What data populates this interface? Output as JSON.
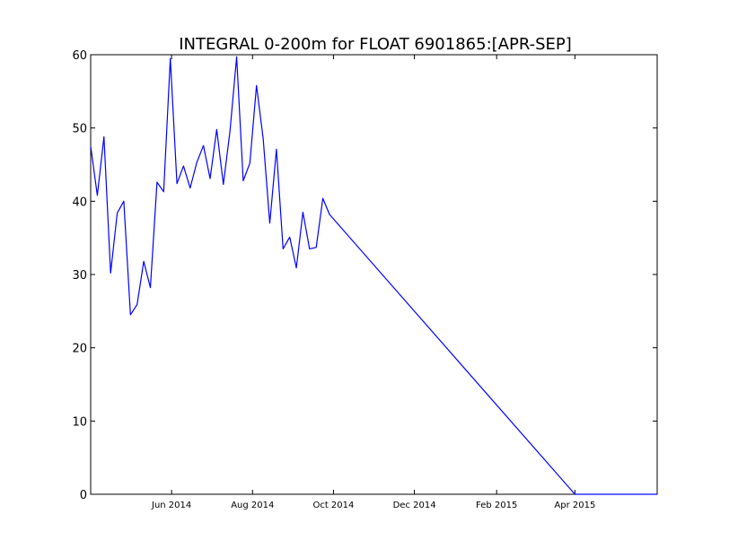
{
  "chart_data": {
    "type": "line",
    "title": "INTEGRAL 0-200m for FLOAT 6901865:[APR-SEP]",
    "xlabel": "",
    "ylabel": "",
    "x_axis_type": "date",
    "xlim": [
      "2014-04-01",
      "2015-06-02"
    ],
    "ylim": [
      0,
      60
    ],
    "yticks": [
      0,
      10,
      20,
      30,
      40,
      50,
      60
    ],
    "xticks": [
      {
        "date": "2014-06-01",
        "label": "Jun 2014"
      },
      {
        "date": "2014-08-01",
        "label": "Aug 2014"
      },
      {
        "date": "2014-10-01",
        "label": "Oct 2014"
      },
      {
        "date": "2014-12-01",
        "label": "Dec 2014"
      },
      {
        "date": "2015-02-01",
        "label": "Feb 2015"
      },
      {
        "date": "2015-04-01",
        "label": "Apr 2015"
      }
    ],
    "grid": false,
    "line_color": "#0000ff",
    "series": [
      {
        "x": [
          "2014-04-01",
          "2014-04-06",
          "2014-04-11",
          "2014-04-16",
          "2014-04-21",
          "2014-04-26",
          "2014-05-01",
          "2014-05-06",
          "2014-05-11",
          "2014-05-16",
          "2014-05-21",
          "2014-05-26",
          "2014-05-31",
          "2014-06-05",
          "2014-06-10",
          "2014-06-15",
          "2014-06-20",
          "2014-06-25",
          "2014-06-30",
          "2014-07-05",
          "2014-07-10",
          "2014-07-15",
          "2014-07-20",
          "2014-07-25",
          "2014-07-30",
          "2014-08-04",
          "2014-08-09",
          "2014-08-14",
          "2014-08-19",
          "2014-08-24",
          "2014-08-29",
          "2014-09-03",
          "2014-09-08",
          "2014-09-13",
          "2014-09-18",
          "2014-09-23",
          "2014-09-28",
          "2015-04-01",
          "2015-04-06",
          "2015-04-11",
          "2015-04-16",
          "2015-04-21",
          "2015-04-26",
          "2015-05-01",
          "2015-05-06",
          "2015-05-11",
          "2015-05-16",
          "2015-05-21",
          "2015-05-26",
          "2015-05-31",
          "2015-06-02"
        ],
        "values": [
          47.5,
          40.8,
          48.8,
          30.2,
          38.4,
          40.0,
          24.5,
          25.9,
          31.8,
          28.2,
          42.6,
          41.3,
          59.5,
          42.4,
          44.8,
          41.8,
          45.3,
          47.6,
          43.1,
          49.8,
          42.3,
          49.6,
          59.7,
          42.8,
          45.2,
          55.8,
          48.6,
          37.0,
          47.1,
          33.5,
          35.1,
          30.9,
          38.5,
          33.5,
          33.7,
          40.4,
          38.2,
          0.0,
          0.0,
          0.0,
          0.0,
          0.0,
          0.0,
          0.0,
          0.0,
          0.0,
          0.0,
          0.0,
          0.0,
          0.0,
          0.0
        ]
      }
    ]
  }
}
